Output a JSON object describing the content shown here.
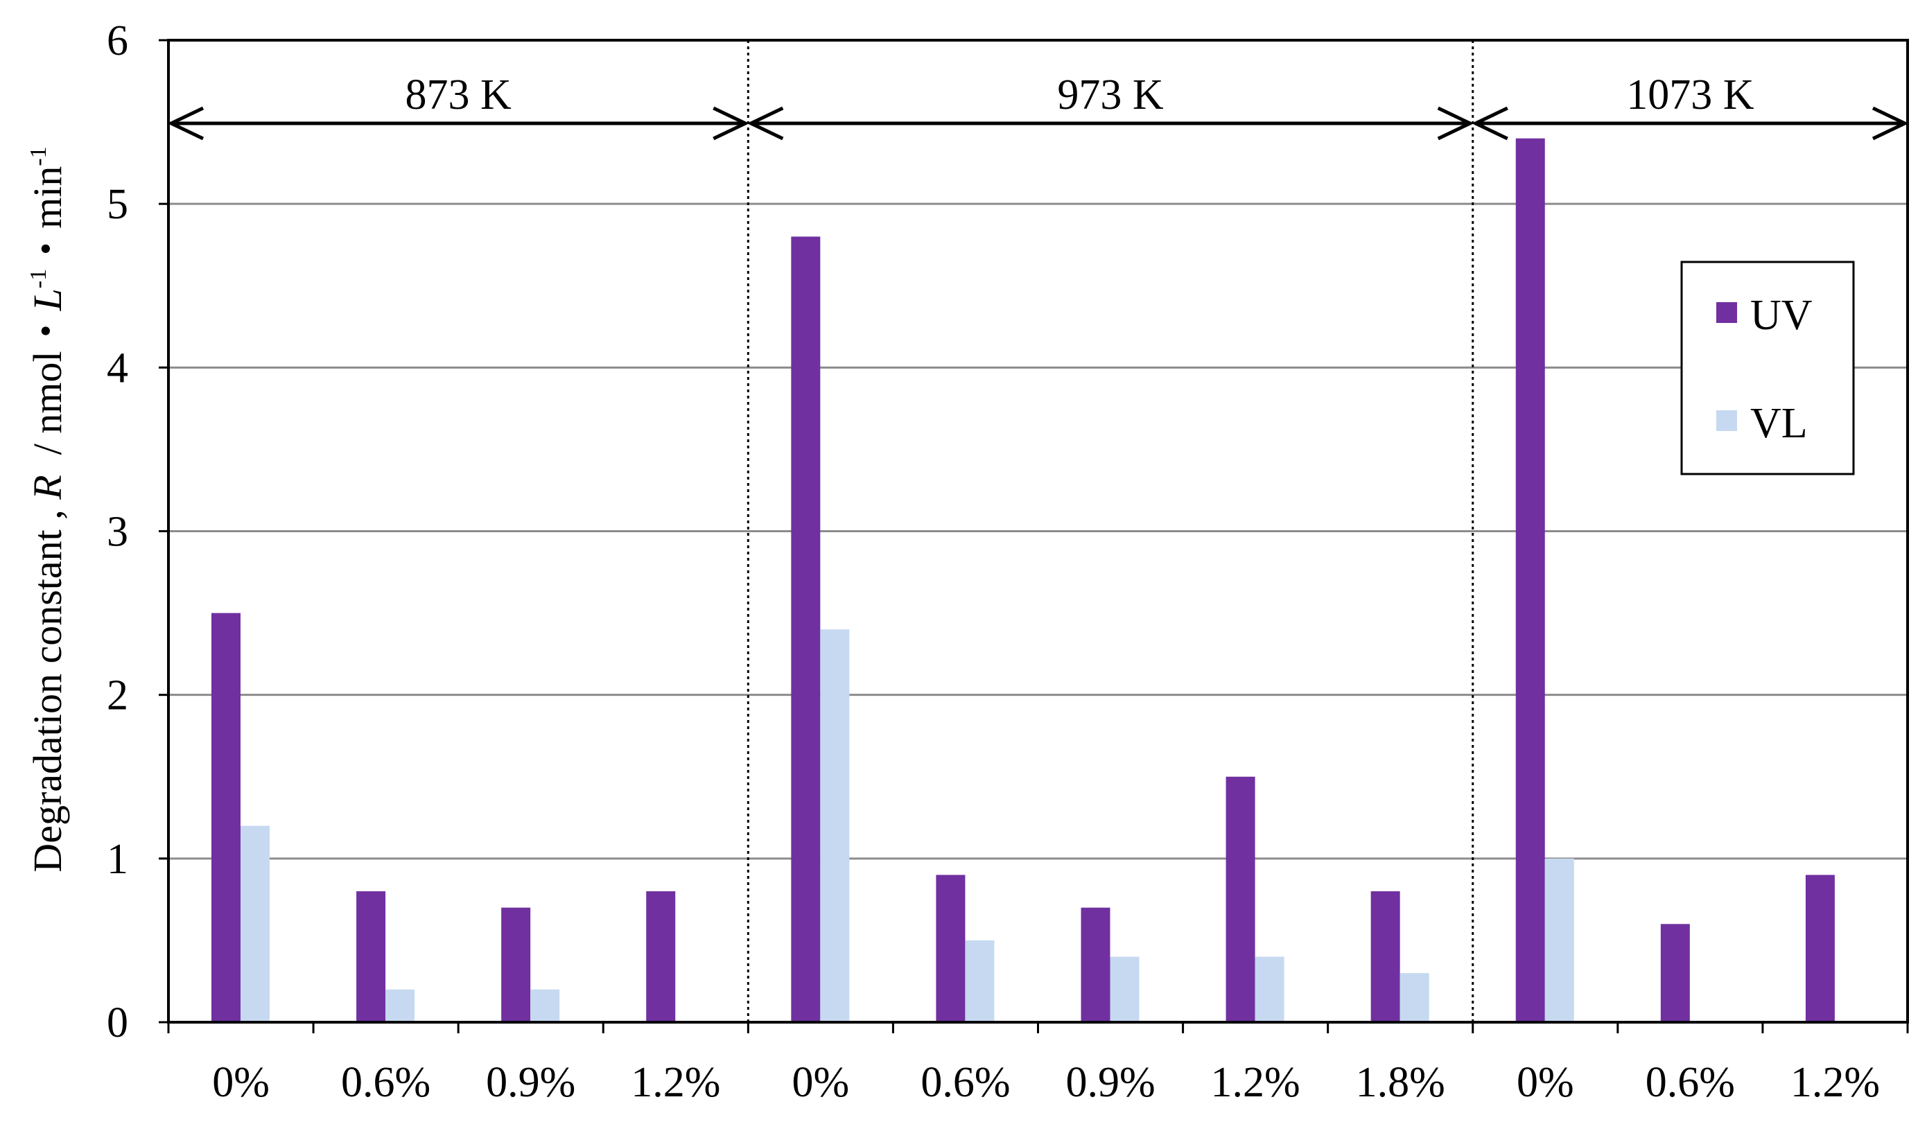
{
  "chart_data": {
    "type": "bar",
    "ylabel": {
      "prefix": "Degradation constant , ",
      "symbol": "R",
      "unit_pre": "  / nmol・",
      "unit_L": "L",
      "sup1": "-1",
      "unit_mid": "・min",
      "sup2": "-1"
    },
    "ylim": [
      0,
      6
    ],
    "yticks": [
      "0",
      "1",
      "2",
      "3",
      "4",
      "5",
      "6"
    ],
    "grid": true,
    "legend_position": "top-right",
    "groups": [
      {
        "label": "873 K",
        "categories": [
          "0%",
          "0.6%",
          "0.9%",
          "1.2%"
        ]
      },
      {
        "label": "973 K",
        "categories": [
          "0%",
          "0.6%",
          "0.9%",
          "1.2%",
          "1.8%"
        ]
      },
      {
        "label": "1073 K",
        "categories": [
          "0%",
          "0.6%",
          "1.2%"
        ]
      }
    ],
    "categories": [
      "0%",
      "0.6%",
      "0.9%",
      "1.2%",
      "0%",
      "0.6%",
      "0.9%",
      "1.2%",
      "1.8%",
      "0%",
      "0.6%",
      "1.2%"
    ],
    "series": [
      {
        "name": "UV",
        "color": "#7030a0",
        "values": [
          2.5,
          0.8,
          0.7,
          0.8,
          4.8,
          0.9,
          0.7,
          1.5,
          0.8,
          5.4,
          0.6,
          0.9
        ]
      },
      {
        "name": "VL",
        "color": "#c6d9f1",
        "values": [
          1.2,
          0.2,
          0.2,
          0,
          2.4,
          0.5,
          0.4,
          0.4,
          0.3,
          1.0,
          0,
          0
        ]
      }
    ]
  }
}
